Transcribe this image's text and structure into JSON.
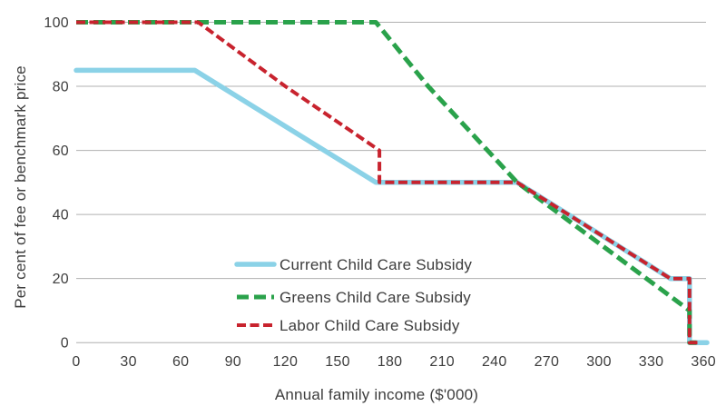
{
  "chart_data": {
    "type": "line",
    "title": "",
    "xlabel": "Annual family income ($'000)",
    "ylabel": "Per cent of fee or benchmark price",
    "xlim": [
      0,
      360
    ],
    "ylim": [
      0,
      100
    ],
    "x_ticks": [
      0,
      30,
      60,
      90,
      120,
      150,
      180,
      210,
      240,
      270,
      300,
      330,
      360
    ],
    "y_ticks": [
      0,
      20,
      40,
      60,
      80,
      100
    ],
    "grid": "horizontal-only",
    "gridline_color": "#b0b0b0",
    "text_color": "#3d3d3d",
    "legend_position": "inside-bottom-center",
    "series": [
      {
        "name": "Current Child Care Subsidy",
        "color": "#8bd2e7",
        "style": "solid",
        "stroke_width": 5.5,
        "points": [
          [
            0,
            85
          ],
          [
            68,
            85
          ],
          [
            172,
            50
          ],
          [
            253,
            50
          ],
          [
            341,
            20
          ],
          [
            352,
            20
          ],
          [
            352,
            0
          ],
          [
            362,
            0
          ]
        ]
      },
      {
        "name": "Greens Child Care Subsidy",
        "color": "#2aa24b",
        "style": "dashed",
        "dash": "13 6",
        "stroke_width": 5,
        "points": [
          [
            0,
            100
          ],
          [
            172,
            100
          ],
          [
            202,
            80
          ],
          [
            253,
            50
          ],
          [
            352,
            10
          ],
          [
            352,
            0
          ],
          [
            356,
            0
          ]
        ]
      },
      {
        "name": "Labor Child Care Subsidy",
        "color": "#c8232e",
        "style": "dashed",
        "dash": "10 4.5",
        "stroke_width": 4,
        "points": [
          [
            0,
            100
          ],
          [
            70,
            100
          ],
          [
            120,
            80
          ],
          [
            174,
            60
          ],
          [
            174,
            50
          ],
          [
            253,
            50
          ],
          [
            341,
            20
          ],
          [
            352,
            20
          ],
          [
            352,
            0
          ],
          [
            358,
            0
          ]
        ]
      }
    ]
  }
}
